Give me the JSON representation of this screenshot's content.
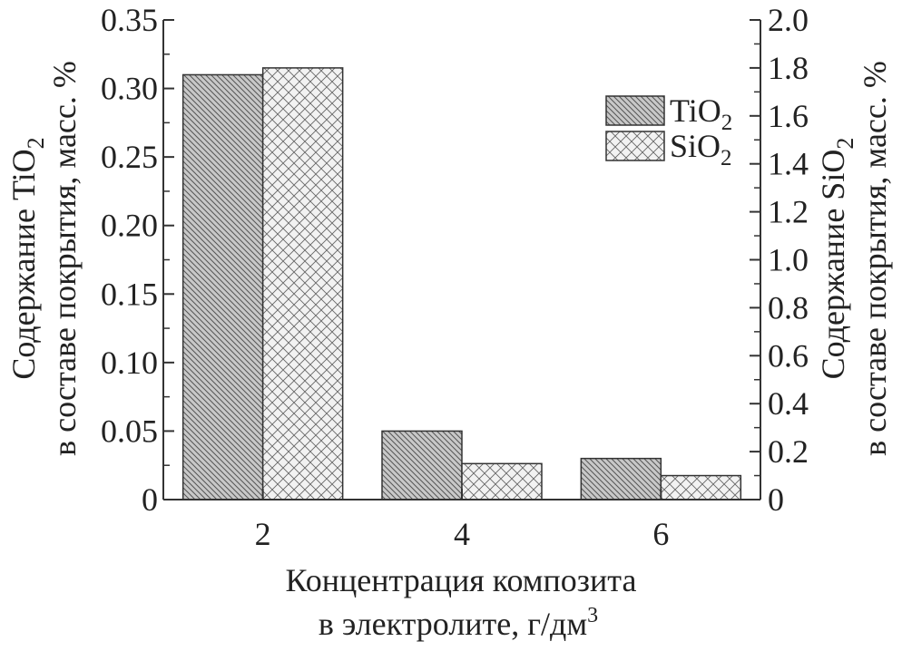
{
  "chart_data": {
    "type": "bar",
    "categories": [
      "2",
      "4",
      "6"
    ],
    "series": [
      {
        "name": "TiO2",
        "axis": "left",
        "values": [
          0.31,
          0.05,
          0.03
        ],
        "pattern": "diagonal-hatch",
        "color": "#c4c4c4"
      },
      {
        "name": "SiO2",
        "axis": "right",
        "values": [
          1.8,
          0.15,
          0.1
        ],
        "pattern": "crosshatch",
        "color": "#eeeeee"
      }
    ],
    "y_left": {
      "ylim": [
        0,
        0.35
      ],
      "ticks": [
        "0",
        "0.05",
        "0.10",
        "0.15",
        "0.20",
        "0.25",
        "0.30",
        "0.35"
      ],
      "label_line1": "Содержание TiO",
      "label_line1_sub": "2",
      "label_line2": "в составе покрытия, масс. %"
    },
    "y_right": {
      "ylim": [
        0,
        2.0
      ],
      "ticks": [
        "0",
        "0.2",
        "0.4",
        "0.6",
        "0.8",
        "1.0",
        "1.2",
        "1.4",
        "1.6",
        "1.8",
        "2.0"
      ],
      "label_line1": "Содержание SiO",
      "label_line1_sub": "2",
      "label_line2": "в составе покрытия, масс. %"
    },
    "xlabel_line1": "Концентрация композита",
    "xlabel_line2": "в электролите, г/дм",
    "xlabel_sup": "3",
    "legend": {
      "position": "top-right",
      "items": [
        {
          "text": "TiO",
          "sub": "2"
        },
        {
          "text": "SiO",
          "sub": "2"
        }
      ]
    }
  }
}
